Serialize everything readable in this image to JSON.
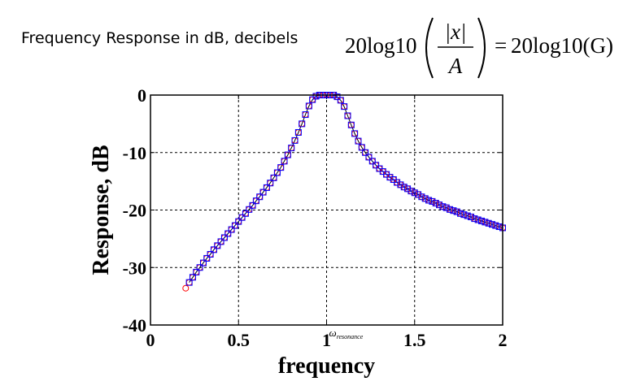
{
  "heading": "Frequency Response in dB, decibels",
  "formula": {
    "coef_left": "20log10",
    "numerator": "|x|",
    "denominator": "A",
    "equals": "=",
    "coef_right": "20log10(G)"
  },
  "chart_data": {
    "type": "scatter",
    "xlabel": "frequency",
    "ylabel": "Response, dB",
    "xlim": [
      0,
      2
    ],
    "ylim": [
      -40,
      0
    ],
    "xticks": [
      {
        "value": 0,
        "label": "0"
      },
      {
        "value": 0.5,
        "label": "0.5"
      },
      {
        "value": 1,
        "label": "1"
      },
      {
        "value": 1.5,
        "label": "1.5"
      },
      {
        "value": 2,
        "label": "2"
      }
    ],
    "yticks": [
      {
        "value": 0,
        "label": "0"
      },
      {
        "value": -10,
        "label": "-10"
      },
      {
        "value": -20,
        "label": "-20"
      },
      {
        "value": -30,
        "label": "-30"
      },
      {
        "value": -40,
        "label": "-40"
      }
    ],
    "annotation": {
      "symbol": "ω",
      "subscript": "resonance",
      "x": 1
    },
    "grid": true,
    "colors": {
      "circles": "#ff0000",
      "squares": "#0000ff",
      "line": "#000000",
      "grid": "#000000"
    },
    "series": [
      {
        "marker": "circle",
        "x": [
          0.2,
          0.22,
          0.24,
          0.26,
          0.28,
          0.3,
          0.32,
          0.34,
          0.36,
          0.38,
          0.4,
          0.42,
          0.44,
          0.46,
          0.48,
          0.5,
          0.52,
          0.54,
          0.56,
          0.58,
          0.6,
          0.62,
          0.64,
          0.66,
          0.68,
          0.7,
          0.72,
          0.74,
          0.76,
          0.78,
          0.8,
          0.82,
          0.84,
          0.86,
          0.88,
          0.9,
          0.92,
          0.94,
          0.96,
          0.98,
          1.0,
          1.02,
          1.04,
          1.06,
          1.08,
          1.1,
          1.12,
          1.14,
          1.16,
          1.18,
          1.2,
          1.22,
          1.24,
          1.26,
          1.28,
          1.3,
          1.32,
          1.34,
          1.36,
          1.38,
          1.4,
          1.42,
          1.44,
          1.46,
          1.48,
          1.5,
          1.52,
          1.54,
          1.56,
          1.58,
          1.6,
          1.62,
          1.64,
          1.66,
          1.68,
          1.7,
          1.72,
          1.74,
          1.76,
          1.78,
          1.8,
          1.82,
          1.84,
          1.86,
          1.88,
          1.9,
          1.92,
          1.94,
          1.96,
          1.98,
          2.0
        ],
        "y": [
          -33.6,
          -32.6,
          -31.7,
          -30.8,
          -30.0,
          -29.2,
          -28.4,
          -27.7,
          -26.9,
          -26.2,
          -25.5,
          -24.8,
          -24.1,
          -23.4,
          -22.7,
          -22.0,
          -21.3,
          -20.6,
          -19.9,
          -19.2,
          -18.4,
          -17.7,
          -16.9,
          -16.1,
          -15.3,
          -14.4,
          -13.5,
          -12.6,
          -11.5,
          -10.4,
          -9.2,
          -7.9,
          -6.5,
          -5.0,
          -3.4,
          -1.9,
          -0.8,
          -0.2,
          0.0,
          0.0,
          0.0,
          0.0,
          0.0,
          -0.3,
          -0.9,
          -2.0,
          -3.6,
          -5.2,
          -6.7,
          -8.0,
          -9.1,
          -10.0,
          -10.8,
          -11.5,
          -12.2,
          -12.8,
          -13.3,
          -13.8,
          -14.3,
          -14.7,
          -15.2,
          -15.6,
          -16.0,
          -16.3,
          -16.7,
          -17.0,
          -17.3,
          -17.7,
          -18.0,
          -18.3,
          -18.5,
          -18.8,
          -19.1,
          -19.4,
          -19.6,
          -19.9,
          -20.1,
          -20.3,
          -20.6,
          -20.8,
          -21.0,
          -21.2,
          -21.5,
          -21.7,
          -21.9,
          -22.1,
          -22.3,
          -22.5,
          -22.7,
          -22.9,
          -23.1
        ]
      },
      {
        "marker": "square",
        "x": [
          0.22,
          0.24,
          0.26,
          0.28,
          0.3,
          0.32,
          0.34,
          0.36,
          0.38,
          0.4,
          0.42,
          0.44,
          0.46,
          0.48,
          0.5,
          0.52,
          0.54,
          0.56,
          0.58,
          0.6,
          0.62,
          0.64,
          0.66,
          0.68,
          0.7,
          0.72,
          0.74,
          0.76,
          0.78,
          0.8,
          0.82,
          0.84,
          0.86,
          0.88,
          0.9,
          0.92,
          0.94,
          0.96,
          0.98,
          1.0,
          1.02,
          1.04,
          1.06,
          1.08,
          1.1,
          1.12,
          1.14,
          1.16,
          1.18,
          1.2,
          1.22,
          1.24,
          1.26,
          1.28,
          1.3,
          1.32,
          1.34,
          1.36,
          1.38,
          1.4,
          1.42,
          1.44,
          1.46,
          1.48,
          1.5,
          1.52,
          1.54,
          1.56,
          1.58,
          1.6,
          1.62,
          1.64,
          1.66,
          1.68,
          1.7,
          1.72,
          1.74,
          1.76,
          1.78,
          1.8,
          1.82,
          1.84,
          1.86,
          1.88,
          1.9,
          1.92,
          1.94,
          1.96,
          1.98,
          2.0
        ],
        "y": [
          -32.6,
          -31.7,
          -30.8,
          -30.0,
          -29.2,
          -28.4,
          -27.7,
          -26.9,
          -26.2,
          -25.5,
          -24.8,
          -24.1,
          -23.4,
          -22.7,
          -22.0,
          -21.3,
          -20.6,
          -19.9,
          -19.2,
          -18.4,
          -17.7,
          -16.9,
          -16.1,
          -15.3,
          -14.4,
          -13.5,
          -12.6,
          -11.5,
          -10.4,
          -9.2,
          -7.9,
          -6.5,
          -5.0,
          -3.4,
          -1.9,
          -0.8,
          -0.2,
          0.0,
          0.0,
          0.0,
          0.0,
          0.0,
          -0.3,
          -0.9,
          -2.0,
          -3.6,
          -5.2,
          -6.7,
          -8.0,
          -9.1,
          -10.0,
          -10.8,
          -11.5,
          -12.2,
          -12.8,
          -13.3,
          -13.8,
          -14.3,
          -14.7,
          -15.2,
          -15.6,
          -16.0,
          -16.3,
          -16.7,
          -17.0,
          -17.3,
          -17.7,
          -18.0,
          -18.3,
          -18.5,
          -18.8,
          -19.1,
          -19.4,
          -19.6,
          -19.9,
          -20.1,
          -20.3,
          -20.6,
          -20.8,
          -21.0,
          -21.2,
          -21.5,
          -21.7,
          -21.9,
          -22.1,
          -22.3,
          -22.5,
          -22.7,
          -22.9,
          -23.1
        ]
      }
    ]
  }
}
